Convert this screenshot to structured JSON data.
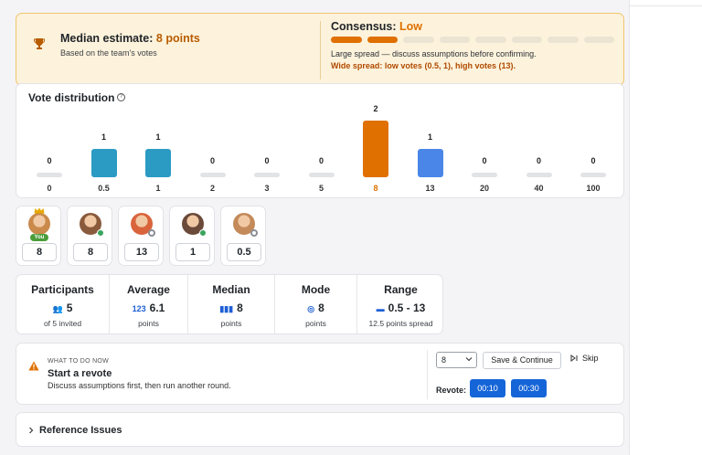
{
  "summary": {
    "median_label": "Median estimate:",
    "median_value": "8 points",
    "median_sub": "Based on the team's votes",
    "consensus_label": "Consensus:",
    "consensus_value": "Low",
    "consensus_segments_filled": 2,
    "consensus_segments_total": 8,
    "consensus_sub": "Large spread — discuss assumptions before confirming.",
    "consensus_warning": "Wide spread: low votes (0.5, 1), high votes (13)."
  },
  "distribution": {
    "title": "Vote distribution",
    "info_icon": "info-icon",
    "selected": "8",
    "max_count": 2,
    "columns": [
      {
        "label": "0",
        "count": "0",
        "color": "#e2e3e6"
      },
      {
        "label": "0.5",
        "count": "1",
        "color": "#2b9bc4"
      },
      {
        "label": "1",
        "count": "1",
        "color": "#2b9bc4"
      },
      {
        "label": "2",
        "count": "0",
        "color": "#e2e3e6"
      },
      {
        "label": "3",
        "count": "0",
        "color": "#e2e3e6"
      },
      {
        "label": "5",
        "count": "0",
        "color": "#e2e3e6"
      },
      {
        "label": "8",
        "count": "2",
        "color": "#e07000"
      },
      {
        "label": "13",
        "count": "1",
        "color": "#4a86e8"
      },
      {
        "label": "20",
        "count": "0",
        "color": "#e2e3e6"
      },
      {
        "label": "40",
        "count": "0",
        "color": "#e2e3e6"
      },
      {
        "label": "100",
        "count": "0",
        "color": "#e2e3e6"
      }
    ]
  },
  "voters": [
    {
      "vote": "8",
      "you": "You",
      "crown": true,
      "status": "none",
      "avatar": "#c98a4b"
    },
    {
      "vote": "8",
      "status": "online",
      "avatar": "#8a5a3c"
    },
    {
      "vote": "13",
      "status": "away",
      "avatar": "#d9643c"
    },
    {
      "vote": "1",
      "status": "online",
      "avatar": "#6b4a3a"
    },
    {
      "vote": "0.5",
      "status": "away",
      "avatar": "#c48a5a"
    }
  ],
  "stats": [
    {
      "title": "Participants",
      "icon": "users-icon",
      "glyph": "👥",
      "value": "5",
      "sub": "of 5 invited"
    },
    {
      "title": "Average",
      "icon": "numbers-icon",
      "glyph": "123",
      "value": "6.1",
      "sub": "points"
    },
    {
      "title": "Median",
      "icon": "bars-icon",
      "glyph": "▮▮▮",
      "value": "8",
      "sub": "points"
    },
    {
      "title": "Mode",
      "icon": "target-icon",
      "glyph": "◎",
      "value": "8",
      "sub": "points"
    },
    {
      "title": "Range",
      "icon": "ruler-icon",
      "glyph": "▬",
      "value": "0.5 - 13",
      "sub": "12.5 points spread"
    }
  ],
  "action": {
    "kicker": "WHAT TO DO NOW",
    "title": "Start a revote",
    "sub": "Discuss assumptions first, then run another round.",
    "select_value": "8",
    "save_label": "Save & Continue",
    "skip_label": "Skip",
    "revote_label": "Revote:",
    "timers": [
      "00:10",
      "00:30"
    ]
  },
  "reference": {
    "title": "Reference Issues"
  }
}
